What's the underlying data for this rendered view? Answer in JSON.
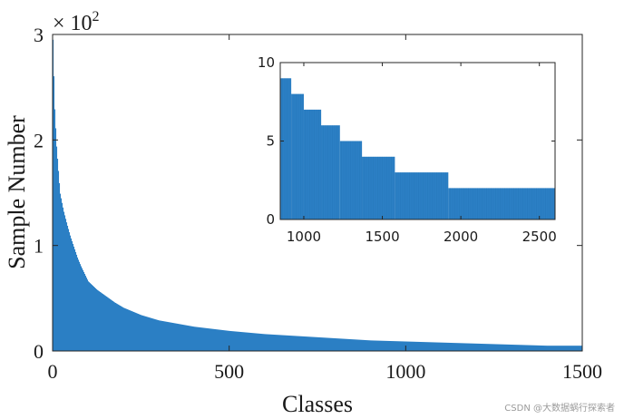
{
  "watermark": "CSDN @大数据蜗行探索者",
  "chart_data": [
    {
      "type": "bar",
      "role": "main",
      "xlabel": "Classes",
      "ylabel": "Sample Number",
      "y_multiplier_prefix": "× 10",
      "y_multiplier_exp": "2",
      "xlim": [
        0,
        1500
      ],
      "ylim": [
        0,
        3
      ],
      "xticks": [
        0,
        500,
        1000,
        1500
      ],
      "xtick_labels": [
        "0",
        "500",
        "1000",
        "1500"
      ],
      "yticks": [
        0,
        1,
        2,
        3
      ],
      "ytick_labels": [
        "0",
        "1",
        "2",
        "3"
      ],
      "color": "#2b7fc4",
      "x": [
        0,
        1,
        3,
        5,
        10,
        20,
        30,
        40,
        50,
        60,
        70,
        80,
        90,
        100,
        125,
        150,
        175,
        200,
        250,
        300,
        350,
        400,
        500,
        600,
        700,
        800,
        900,
        1000,
        1100,
        1200,
        1300,
        1400,
        1500
      ],
      "values": [
        2.95,
        2.8,
        2.55,
        2.3,
        1.95,
        1.5,
        1.33,
        1.2,
        1.08,
        0.98,
        0.88,
        0.8,
        0.73,
        0.66,
        0.58,
        0.52,
        0.46,
        0.41,
        0.34,
        0.29,
        0.26,
        0.23,
        0.19,
        0.16,
        0.14,
        0.12,
        0.1,
        0.09,
        0.08,
        0.07,
        0.06,
        0.05,
        0.05
      ]
    },
    {
      "type": "bar",
      "role": "inset",
      "xlim": [
        850,
        2600
      ],
      "ylim": [
        0,
        10
      ],
      "xticks": [
        1000,
        1500,
        2000,
        2500
      ],
      "xtick_labels": [
        "1000",
        "1500",
        "2000",
        "2500"
      ],
      "yticks": [
        0,
        5,
        10
      ],
      "ytick_labels": [
        "0",
        "5",
        "10"
      ],
      "color": "#2b7fc4",
      "steps": [
        {
          "from": 850,
          "to": 920,
          "value": 9
        },
        {
          "from": 920,
          "to": 1000,
          "value": 8
        },
        {
          "from": 1000,
          "to": 1110,
          "value": 7
        },
        {
          "from": 1110,
          "to": 1230,
          "value": 6
        },
        {
          "from": 1230,
          "to": 1370,
          "value": 5
        },
        {
          "from": 1370,
          "to": 1580,
          "value": 4
        },
        {
          "from": 1580,
          "to": 1920,
          "value": 3
        },
        {
          "from": 1920,
          "to": 2600,
          "value": 2
        }
      ]
    }
  ]
}
